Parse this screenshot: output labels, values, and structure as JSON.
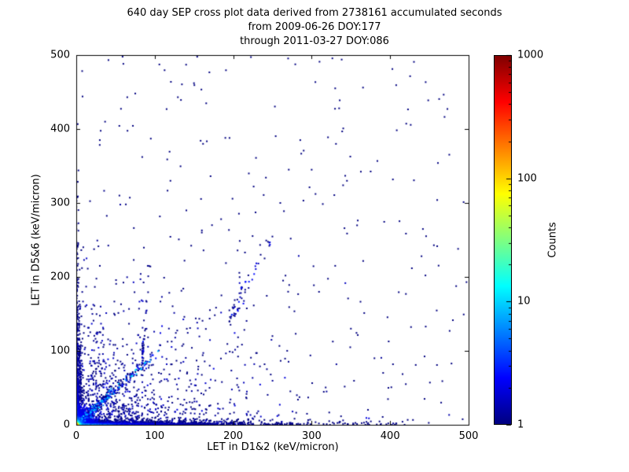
{
  "chart_data": {
    "type": "scatter",
    "title_lines": [
      "640 day SEP cross plot data derived from 2738161 accumulated seconds",
      "from 2009-06-26 DOY:177",
      "through 2011-03-27 DOY:086"
    ],
    "xlabel": "LET in D1&2 (keV/micron)",
    "ylabel": "LET in D5&6 (keV/micron)",
    "xlim": [
      0,
      500
    ],
    "ylim": [
      0,
      500
    ],
    "xticks": [
      0,
      100,
      200,
      300,
      400,
      500
    ],
    "yticks": [
      0,
      100,
      200,
      300,
      400,
      500
    ],
    "grid": false,
    "background": "#ffffff",
    "frame_color": "#000000",
    "colorbar": {
      "label": "Counts",
      "scale": "log",
      "range": [
        1,
        1000
      ],
      "ticks": [
        1,
        10,
        100,
        1000
      ],
      "colormap": "jet",
      "gradient_stops": [
        [
          0.0,
          "#000080"
        ],
        [
          0.125,
          "#0000ff"
        ],
        [
          0.375,
          "#00ffff"
        ],
        [
          0.625,
          "#ffff00"
        ],
        [
          0.875,
          "#ff0000"
        ],
        [
          1.0,
          "#800000"
        ]
      ]
    },
    "distribution": {
      "description": "Density-colored LET cross plot: intense hot core at the origin (yellow/green/cyan), low-count ridges hugging both axes, a unit-slope diagonal band out to ~(100,100), a short steep streak near (200,150)-(245,240), diffuse single-count scatter concentrated in the lower-left, and sparse single counts across the full field.",
      "clusters": [
        {
          "name": "sparse-field",
          "dist": "uniform",
          "n": 240,
          "x_max": 500,
          "y_max": 500,
          "count_min": 1,
          "count_max": 1
        },
        {
          "name": "lower-left-diffuse",
          "dist": "expexp",
          "n": 1000,
          "x_scale": 75,
          "y_scale": 50,
          "x_max": 490,
          "y_max": 490,
          "count_min": 1,
          "count_max": 2
        },
        {
          "name": "mid-diagonal-streak",
          "dist": "diag",
          "n": 55,
          "x_min": 195,
          "x_scale": 30,
          "x_max": 250,
          "slope": 2.11,
          "intercept": -272,
          "spread": 7,
          "count_min": 1,
          "count_max": 3
        },
        {
          "name": "vertical-streak",
          "dist": "diag",
          "n": 40,
          "x_min": 84,
          "x_scale": 2.5,
          "x_max": 93,
          "slope": 14,
          "intercept": -1090,
          "spread": 9,
          "count_min": 1,
          "count_max": 3
        },
        {
          "name": "unit-slope-diagonal-band",
          "dist": "diag",
          "n": 380,
          "x_min": 3,
          "x_scale": 35,
          "x_max": 105,
          "slope": 0.95,
          "intercept": 0,
          "spread": 3.5,
          "count_min": 1,
          "count_max": 12
        },
        {
          "name": "y-axis-ridge",
          "dist": "expexp",
          "n": 700,
          "x_scale": 2.2,
          "y_scale": 70,
          "x_max": 9,
          "y_max": 420,
          "count_min": 1,
          "count_max": 10,
          "hot": true
        },
        {
          "name": "x-axis-ridge",
          "dist": "expexp",
          "n": 1400,
          "x_scale": 90,
          "y_scale": 2.2,
          "x_max": 430,
          "y_max": 9,
          "count_min": 1,
          "count_max": 15,
          "hot": true
        },
        {
          "name": "origin-hot-core",
          "dist": "expexp",
          "n": 2600,
          "x_scale": 5,
          "y_scale": 5,
          "x_max": 30,
          "y_max": 30,
          "count_min": 2,
          "count_max": 400,
          "hot": true
        }
      ],
      "outlier_points": [
        [
          140,
          487
        ],
        [
          150,
          462
        ],
        [
          310,
          491
        ],
        [
          330,
          455
        ],
        [
          65,
          443
        ],
        [
          8,
          444
        ],
        [
          190,
          388
        ],
        [
          95,
          387
        ],
        [
          335,
          428
        ],
        [
          260,
          300
        ],
        [
          445,
          202
        ],
        [
          215,
          233
        ],
        [
          235,
          230
        ],
        [
          240,
          225
        ],
        [
          345,
          330
        ],
        [
          300,
          345
        ],
        [
          120,
          330
        ],
        [
          30,
          385
        ],
        [
          55,
          310
        ],
        [
          270,
          180
        ],
        [
          350,
          130
        ],
        [
          420,
          55
        ],
        [
          465,
          30
        ],
        [
          380,
          90
        ],
        [
          330,
          215
        ],
        [
          160,
          260
        ],
        [
          185,
          175
        ],
        [
          250,
          120
        ]
      ]
    }
  }
}
